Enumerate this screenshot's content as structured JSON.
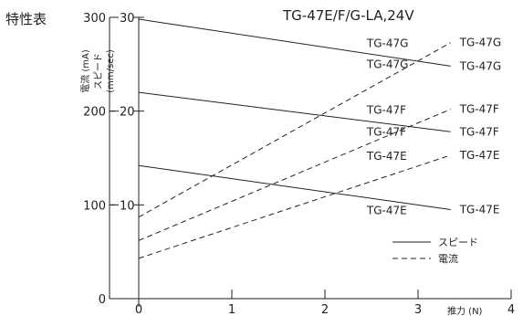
{
  "page": {
    "heading": "特性表"
  },
  "chart_data": {
    "type": "line",
    "title": "TG-47E/F/G-LA,24V",
    "xlabel": "推力 (N)",
    "ylabel_current": "電流 (mA)",
    "ylabel_speed_name": "スピード",
    "ylabel_speed_unit": "(mm/sec)",
    "xlim": [
      0,
      4
    ],
    "x_ticks": [
      "0",
      "1",
      "2",
      "3",
      "4"
    ],
    "current_ylim": [
      0,
      300
    ],
    "current_ticks": [
      "0",
      "100",
      "200",
      "300"
    ],
    "speed_ylim": [
      0,
      30
    ],
    "speed_ticks": [
      "10",
      "20",
      "30"
    ],
    "legend": [
      {
        "label": "スピード",
        "style": "solid"
      },
      {
        "label": "電流",
        "style": "dashed"
      }
    ],
    "series": [
      {
        "name": "TG-47G",
        "quantity": "speed",
        "style": "solid",
        "x": [
          0,
          3.35
        ],
        "y": [
          29.8,
          24.8
        ],
        "label": "TG-47G"
      },
      {
        "name": "TG-47F",
        "quantity": "speed",
        "style": "solid",
        "x": [
          0,
          3.35
        ],
        "y": [
          22.0,
          17.8
        ],
        "label": "TG-47F"
      },
      {
        "name": "TG-47E",
        "quantity": "speed",
        "style": "solid",
        "x": [
          0,
          3.35
        ],
        "y": [
          14.2,
          9.5
        ],
        "label": "TG-47E"
      },
      {
        "name": "TG-47G",
        "quantity": "current",
        "style": "dashed",
        "x": [
          0,
          3.35
        ],
        "y": [
          87,
          273
        ],
        "label": "TG-47G"
      },
      {
        "name": "TG-47F",
        "quantity": "current",
        "style": "dashed",
        "x": [
          0,
          3.35
        ],
        "y": [
          62,
          202
        ],
        "label": "TG-47F"
      },
      {
        "name": "TG-47E",
        "quantity": "current",
        "style": "dashed",
        "x": [
          0,
          3.35
        ],
        "y": [
          43,
          153
        ],
        "label": "TG-47E"
      }
    ],
    "left_labels": [
      {
        "text": "TG-47G",
        "x": 2.45,
        "y": 272
      },
      {
        "text": "TG-47G",
        "x": 2.45,
        "y": 250
      },
      {
        "text": "TG-47F",
        "x": 2.45,
        "y": 201
      },
      {
        "text": "TG-47F",
        "x": 2.45,
        "y": 178
      },
      {
        "text": "TG-47E",
        "x": 2.45,
        "y": 152
      },
      {
        "text": "TG-47E",
        "x": 2.45,
        "y": 94
      }
    ],
    "grid": false
  }
}
